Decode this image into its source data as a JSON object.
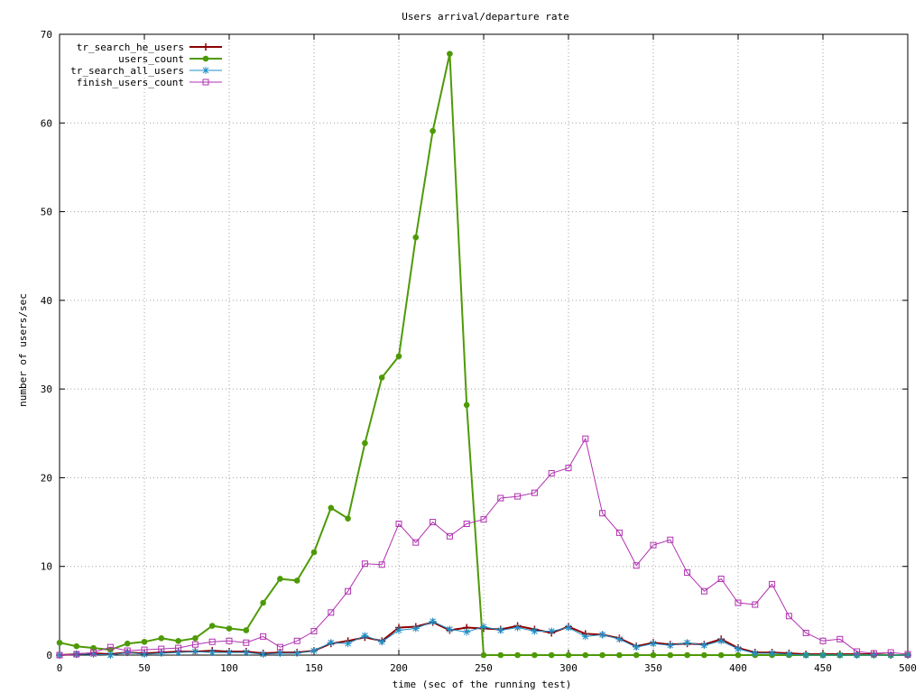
{
  "chart_data": {
    "type": "line",
    "title": "Users arrival/departure rate",
    "xlabel": "time (sec of the running test)",
    "ylabel": "number of users/sec",
    "xlim": [
      0,
      500
    ],
    "ylim": [
      0,
      70
    ],
    "xticks": [
      0,
      50,
      100,
      150,
      200,
      250,
      300,
      350,
      400,
      450,
      500
    ],
    "yticks": [
      0,
      10,
      20,
      30,
      40,
      50,
      60,
      70
    ],
    "grid": true,
    "legend_position": "top-left",
    "series": [
      {
        "name": "tr_search_he_users",
        "color": "#8b0000",
        "marker": "plus",
        "x": [
          0,
          10,
          20,
          30,
          40,
          50,
          60,
          70,
          80,
          90,
          100,
          110,
          120,
          130,
          140,
          150,
          160,
          170,
          180,
          190,
          200,
          210,
          220,
          230,
          240,
          250,
          260,
          270,
          280,
          290,
          300,
          310,
          320,
          330,
          340,
          350,
          360,
          370,
          380,
          390,
          400,
          410,
          420,
          430,
          440,
          450,
          460,
          470,
          480,
          490,
          500
        ],
        "y": [
          0,
          0.1,
          0.2,
          0.1,
          0.3,
          0.2,
          0.3,
          0.4,
          0.4,
          0.5,
          0.4,
          0.4,
          0.2,
          0.3,
          0.3,
          0.5,
          1.3,
          1.6,
          2,
          1.6,
          3.1,
          3.2,
          3.7,
          2.8,
          3.1,
          3,
          2.9,
          3.3,
          2.9,
          2.5,
          3.2,
          2.4,
          2.3,
          1.9,
          1,
          1.4,
          1.2,
          1.3,
          1.2,
          1.8,
          0.8,
          0.3,
          0.3,
          0.2,
          0.1,
          0.1,
          0.1,
          0.1,
          0.1,
          0,
          0
        ]
      },
      {
        "name": "users_count",
        "color": "#4e9a06",
        "marker": "dot",
        "x": [
          0,
          10,
          20,
          30,
          40,
          50,
          60,
          70,
          80,
          90,
          100,
          110,
          120,
          130,
          140,
          150,
          160,
          170,
          180,
          190,
          200,
          210,
          220,
          230,
          240,
          250,
          260,
          270,
          280,
          290,
          300,
          310,
          320,
          330,
          340,
          350,
          360,
          370,
          380,
          390,
          400,
          410,
          420,
          430,
          440,
          450,
          460,
          470,
          480,
          490,
          500
        ],
        "y": [
          1.4,
          1,
          0.8,
          0.6,
          1.3,
          1.5,
          1.9,
          1.6,
          1.9,
          3.3,
          3,
          2.8,
          5.9,
          8.6,
          8.4,
          11.6,
          16.6,
          15.4,
          23.9,
          31.3,
          33.7,
          47.1,
          59.1,
          67.8,
          28.2,
          0,
          0,
          0,
          0,
          0,
          0,
          0,
          0,
          0,
          0,
          0,
          0,
          0,
          0,
          0,
          0,
          0,
          0,
          0,
          0,
          0,
          0,
          0,
          0,
          0,
          0
        ]
      },
      {
        "name": "tr_search_all_users",
        "color": "#1e90c8",
        "marker": "star",
        "x": [
          0,
          10,
          20,
          30,
          40,
          50,
          60,
          70,
          80,
          90,
          100,
          110,
          120,
          130,
          140,
          150,
          160,
          170,
          180,
          190,
          200,
          210,
          220,
          230,
          240,
          250,
          260,
          270,
          280,
          290,
          300,
          310,
          320,
          330,
          340,
          350,
          360,
          370,
          380,
          390,
          400,
          410,
          420,
          430,
          440,
          450,
          460,
          470,
          480,
          490,
          500
        ],
        "y": [
          0,
          0.1,
          0.1,
          0,
          0.3,
          0.1,
          0.2,
          0.3,
          0.4,
          0.3,
          0.3,
          0.3,
          0.1,
          0.2,
          0.2,
          0.5,
          1.4,
          1.3,
          2.2,
          1.5,
          2.8,
          3,
          3.8,
          2.9,
          2.6,
          3.2,
          2.8,
          3.1,
          2.7,
          2.7,
          3.1,
          2.1,
          2.3,
          1.8,
          0.9,
          1.3,
          1.1,
          1.4,
          1.1,
          1.6,
          0.7,
          0.2,
          0.2,
          0.1,
          0,
          0,
          0,
          0,
          0,
          0,
          0
        ]
      },
      {
        "name": "finish_users_count",
        "color": "#b030b0",
        "marker": "box",
        "x": [
          0,
          10,
          20,
          30,
          40,
          50,
          60,
          70,
          80,
          90,
          100,
          110,
          120,
          130,
          140,
          150,
          160,
          170,
          180,
          190,
          200,
          210,
          220,
          230,
          240,
          250,
          260,
          270,
          280,
          290,
          300,
          310,
          320,
          330,
          340,
          350,
          360,
          370,
          380,
          390,
          400,
          410,
          420,
          430,
          440,
          450,
          460,
          470,
          480,
          490,
          500
        ],
        "y": [
          0,
          0.1,
          0.3,
          0.9,
          0.5,
          0.6,
          0.7,
          0.8,
          1.2,
          1.5,
          1.6,
          1.4,
          2.1,
          0.9,
          1.6,
          2.7,
          4.8,
          7.2,
          10.3,
          10.2,
          14.8,
          12.7,
          15,
          13.4,
          14.8,
          15.3,
          17.7,
          17.9,
          18.3,
          20.5,
          21.1,
          24.4,
          16,
          13.8,
          10.1,
          12.4,
          13,
          9.3,
          7.2,
          8.6,
          5.9,
          5.7,
          8,
          4.4,
          2.5,
          1.6,
          1.8,
          0.4,
          0.2,
          0.3,
          0.1
        ]
      }
    ]
  }
}
